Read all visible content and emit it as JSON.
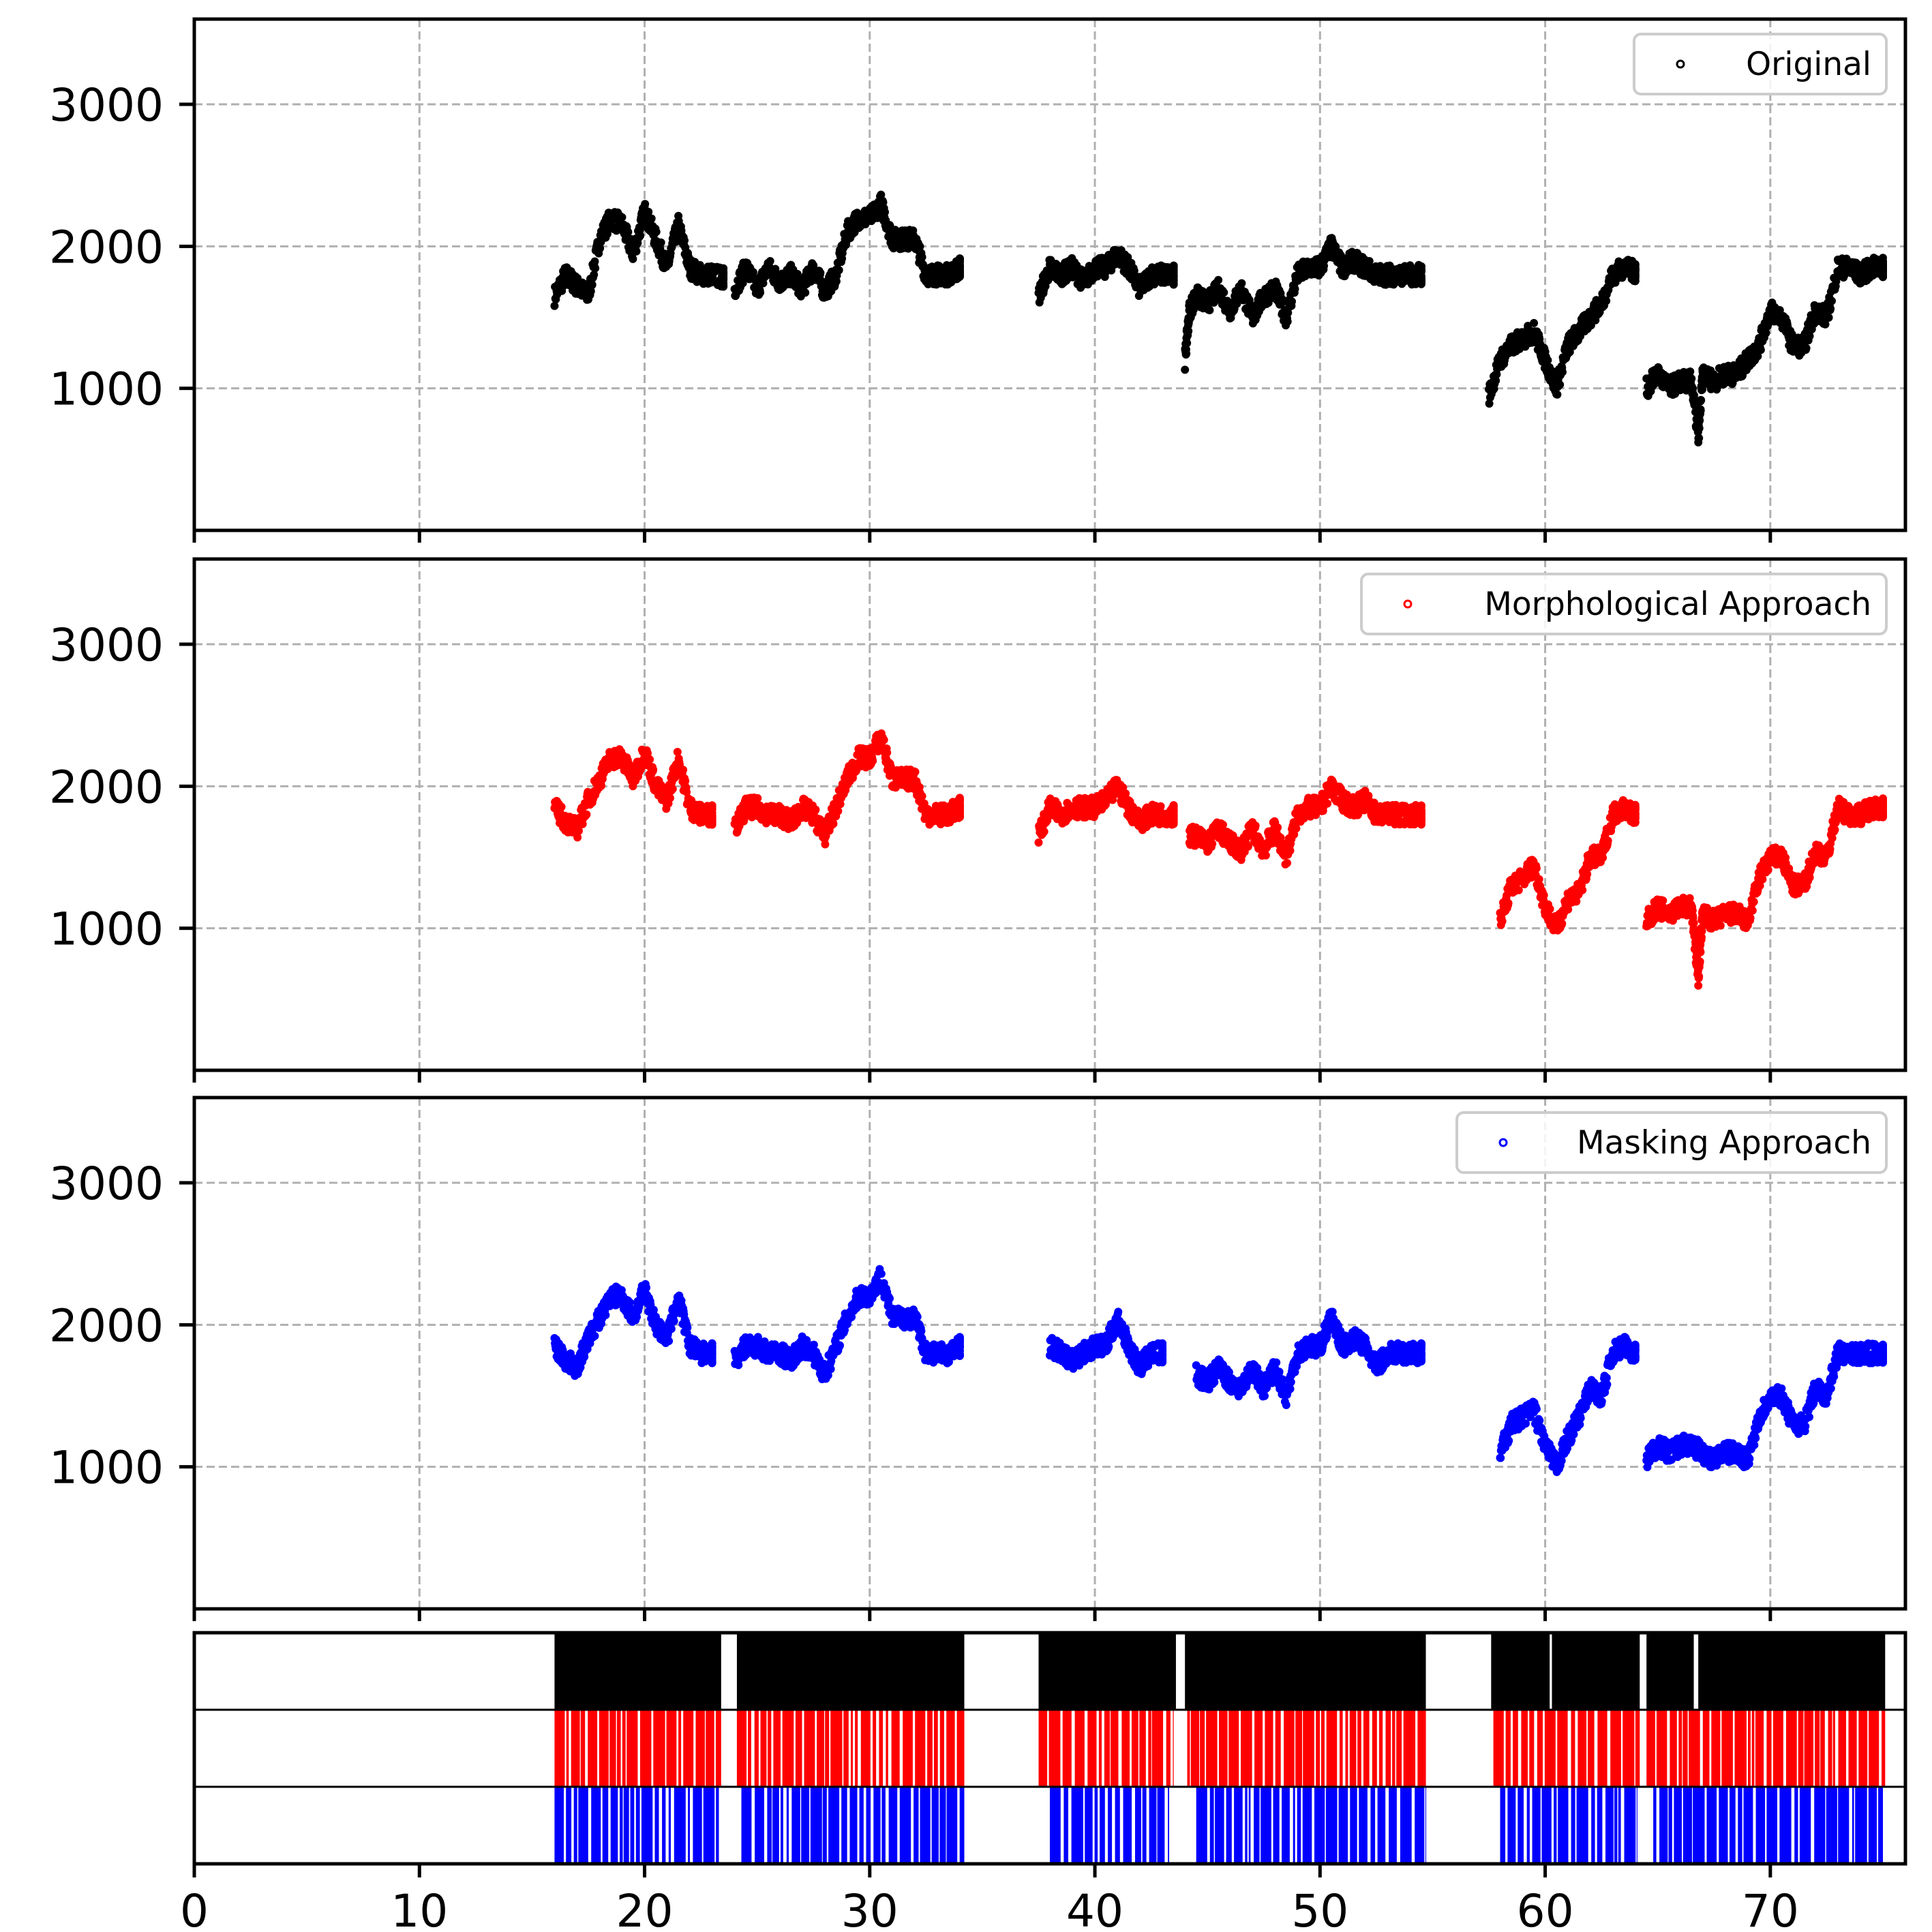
{
  "chart_data": [
    {
      "type": "scatter",
      "legend": "Original",
      "legend_position": "top-right",
      "color": "#000000",
      "xlim": [
        0,
        76
      ],
      "ylim": [
        0,
        3600
      ],
      "yticks": [
        1000,
        2000,
        3000
      ],
      "grid": true,
      "segments": [
        {
          "x": [
            16.0,
            16.5,
            17.0,
            17.5,
            18.0,
            18.5,
            19.0,
            19.5,
            20.0,
            20.5,
            21.0,
            21.5,
            22.0,
            22.5,
            23.0,
            23.5
          ],
          "y": [
            1650,
            1800,
            1720,
            1650,
            2050,
            2200,
            2150,
            1950,
            2250,
            2050,
            1850,
            2150,
            1850,
            1800,
            1800,
            1780
          ]
        },
        {
          "x": [
            24.0,
            24.5,
            25.0,
            25.5,
            26.0,
            26.5,
            27.0,
            27.5,
            28.0,
            28.5,
            29.0,
            29.5,
            30.0,
            30.5,
            31.0,
            31.5,
            32.0,
            32.5,
            33.0,
            33.5,
            34.0
          ],
          "y": [
            1700,
            1850,
            1700,
            1850,
            1750,
            1800,
            1700,
            1850,
            1680,
            1800,
            2100,
            2200,
            2200,
            2300,
            2050,
            2050,
            2050,
            1800,
            1800,
            1800,
            1850
          ]
        },
        {
          "x": [
            37.5,
            38.0,
            38.5,
            39.0,
            39.5,
            40.0,
            40.5,
            41.0,
            41.5,
            42.0,
            42.5,
            43.0,
            43.5
          ],
          "y": [
            1650,
            1850,
            1800,
            1850,
            1750,
            1850,
            1850,
            1950,
            1850,
            1700,
            1800,
            1800,
            1800
          ]
        },
        {
          "x": [
            44.0,
            44.2,
            44.5,
            45.0,
            45.5,
            46.0,
            46.5,
            47.0,
            47.5,
            48.0,
            48.5,
            49.0,
            49.5,
            50.0,
            50.5,
            51.0,
            51.5,
            52.0,
            52.5,
            53.0,
            53.5,
            54.0,
            54.5
          ],
          "y": [
            1200,
            1550,
            1650,
            1600,
            1700,
            1550,
            1700,
            1500,
            1650,
            1700,
            1500,
            1800,
            1850,
            1850,
            2000,
            1850,
            1900,
            1850,
            1800,
            1800,
            1800,
            1800,
            1800
          ]
        },
        {
          "x": [
            57.5,
            58.0,
            58.5,
            59.0,
            59.5,
            60.0,
            60.5,
            61.0,
            61.5,
            62.0,
            62.5,
            63.0,
            63.5,
            64.0
          ],
          "y": [
            950,
            1200,
            1300,
            1350,
            1400,
            1200,
            1000,
            1300,
            1400,
            1500,
            1600,
            1800,
            1850,
            1820
          ]
        },
        {
          "x": [
            64.5,
            65.0,
            65.5,
            66.0,
            66.5,
            66.8,
            67.0,
            67.5,
            68.0,
            68.5,
            69.0,
            69.5,
            70.0,
            70.5,
            71.0,
            71.5,
            72.0,
            72.5,
            73.0,
            73.5,
            74.0,
            74.5,
            75.0
          ],
          "y": [
            1000,
            1100,
            1000,
            1050,
            1050,
            650,
            1100,
            1050,
            1100,
            1100,
            1200,
            1300,
            1550,
            1500,
            1300,
            1300,
            1550,
            1500,
            1850,
            1850,
            1800,
            1850,
            1850
          ]
        }
      ]
    },
    {
      "type": "scatter",
      "legend": "Morphological Approach",
      "legend_position": "top-right",
      "color": "#ff0000",
      "xlim": [
        0,
        76
      ],
      "ylim": [
        0,
        3600
      ],
      "yticks": [
        1000,
        2000,
        3000
      ],
      "grid": true,
      "segments": [
        {
          "x": [
            16.0,
            16.5,
            17.0,
            17.5,
            18.0,
            18.5,
            19.0,
            19.5,
            20.0,
            20.5,
            21.0,
            21.5,
            22.0,
            22.5,
            23.0
          ],
          "y": [
            1850,
            1750,
            1700,
            1900,
            2050,
            2200,
            2200,
            2050,
            2250,
            2000,
            1900,
            2200,
            1850,
            1800,
            1800
          ]
        },
        {
          "x": [
            24.0,
            24.5,
            25.0,
            25.5,
            26.0,
            26.5,
            27.0,
            27.5,
            28.0,
            28.5,
            29.0,
            29.5,
            30.0,
            30.5,
            31.0,
            31.5,
            32.0,
            32.5,
            33.0,
            33.5,
            34.0
          ],
          "y": [
            1700,
            1850,
            1850,
            1800,
            1800,
            1750,
            1850,
            1800,
            1650,
            1850,
            2050,
            2200,
            2200,
            2350,
            2050,
            2050,
            2050,
            1800,
            1800,
            1800,
            1850
          ]
        },
        {
          "x": [
            37.5,
            38.0,
            38.5,
            39.0,
            39.5,
            40.0,
            40.5,
            41.0,
            41.5,
            42.0,
            42.5,
            43.0,
            43.5
          ],
          "y": [
            1650,
            1850,
            1800,
            1850,
            1850,
            1850,
            1900,
            2000,
            1850,
            1750,
            1800,
            1800,
            1800
          ]
        },
        {
          "x": [
            44.2,
            44.5,
            45.0,
            45.5,
            46.0,
            46.5,
            47.0,
            47.5,
            48.0,
            48.5,
            49.0,
            49.5,
            50.0,
            50.5,
            51.0,
            51.5,
            52.0,
            52.5,
            53.0,
            53.5,
            54.0,
            54.5
          ],
          "y": [
            1650,
            1650,
            1600,
            1700,
            1600,
            1550,
            1700,
            1550,
            1700,
            1500,
            1800,
            1850,
            1850,
            2000,
            1900,
            1850,
            1900,
            1800,
            1800,
            1800,
            1800,
            1800
          ]
        },
        {
          "x": [
            58.0,
            58.5,
            59.0,
            59.5,
            60.0,
            60.5,
            61.0,
            61.5,
            62.0,
            62.5,
            63.0,
            63.5,
            64.0
          ],
          "y": [
            1050,
            1300,
            1350,
            1450,
            1150,
            1000,
            1200,
            1250,
            1500,
            1500,
            1800,
            1850,
            1800
          ]
        },
        {
          "x": [
            64.5,
            65.0,
            65.5,
            66.0,
            66.5,
            66.8,
            67.0,
            67.5,
            68.0,
            68.5,
            69.0,
            69.5,
            70.0,
            70.5,
            71.0,
            71.5,
            72.0,
            72.5,
            73.0,
            73.5,
            74.0,
            74.5,
            75.0
          ],
          "y": [
            1050,
            1150,
            1100,
            1150,
            1150,
            650,
            1100,
            1050,
            1100,
            1100,
            1050,
            1350,
            1500,
            1500,
            1300,
            1300,
            1550,
            1500,
            1850,
            1800,
            1800,
            1850,
            1850
          ]
        }
      ]
    },
    {
      "type": "scatter",
      "legend": "Masking Approach",
      "legend_position": "top-right",
      "color": "#0000ff",
      "xlim": [
        0,
        76
      ],
      "ylim": [
        0,
        3600
      ],
      "yticks": [
        1000,
        2000,
        3000
      ],
      "grid": true,
      "segments": [
        {
          "x": [
            16.0,
            16.5,
            17.0,
            17.5,
            18.0,
            18.5,
            19.0,
            19.5,
            20.0,
            20.5,
            21.0,
            21.5,
            22.0,
            22.5,
            23.0
          ],
          "y": [
            1850,
            1750,
            1700,
            1900,
            2050,
            2200,
            2200,
            2050,
            2250,
            2000,
            1900,
            2200,
            1850,
            1800,
            1800
          ]
        },
        {
          "x": [
            24.0,
            24.5,
            25.0,
            25.5,
            26.0,
            26.5,
            27.0,
            27.5,
            28.0,
            28.5,
            29.0,
            29.5,
            30.0,
            30.5,
            31.0,
            31.5,
            32.0,
            32.5,
            33.0,
            33.5,
            34.0
          ],
          "y": [
            1750,
            1850,
            1850,
            1800,
            1800,
            1750,
            1850,
            1800,
            1650,
            1850,
            2050,
            2200,
            2200,
            2350,
            2050,
            2050,
            2050,
            1800,
            1800,
            1800,
            1850
          ]
        },
        {
          "x": [
            38.0,
            38.5,
            39.0,
            39.5,
            40.0,
            40.5,
            41.0,
            41.5,
            42.0,
            42.5,
            43.0
          ],
          "y": [
            1850,
            1800,
            1750,
            1800,
            1850,
            1850,
            2050,
            1850,
            1700,
            1800,
            1800
          ]
        },
        {
          "x": [
            44.5,
            45.0,
            45.5,
            46.0,
            46.5,
            47.0,
            47.5,
            48.0,
            48.5,
            49.0,
            49.5,
            50.0,
            50.5,
            51.0,
            51.5,
            52.0,
            52.5,
            53.0,
            53.5,
            54.0,
            54.5
          ],
          "y": [
            1650,
            1600,
            1700,
            1600,
            1550,
            1700,
            1550,
            1700,
            1500,
            1800,
            1850,
            1850,
            2050,
            1850,
            1900,
            1850,
            1700,
            1800,
            1800,
            1800,
            1800
          ]
        },
        {
          "x": [
            58.0,
            58.5,
            59.0,
            59.5,
            60.0,
            60.5,
            61.0,
            61.5,
            62.0,
            62.5,
            63.0,
            63.5,
            64.0
          ],
          "y": [
            1100,
            1300,
            1350,
            1400,
            1150,
            1000,
            1200,
            1350,
            1550,
            1500,
            1800,
            1850,
            1800
          ]
        },
        {
          "x": [
            64.5,
            65.0,
            65.5,
            66.0,
            66.5,
            67.0,
            67.5,
            68.0,
            68.5,
            69.0,
            69.5,
            70.0,
            70.5,
            71.0,
            71.5,
            72.0,
            72.5,
            73.0,
            73.5,
            74.0,
            74.5,
            75.0
          ],
          "y": [
            1050,
            1150,
            1100,
            1150,
            1150,
            1100,
            1050,
            1100,
            1100,
            1050,
            1350,
            1500,
            1500,
            1300,
            1300,
            1550,
            1500,
            1800,
            1800,
            1800,
            1800,
            1800
          ]
        }
      ]
    },
    {
      "type": "heatmap",
      "description_rows": [
        "Original",
        "Morphological Approach",
        "Masking Approach"
      ],
      "xlim": [
        0,
        76
      ],
      "xticks": [
        0,
        10,
        20,
        30,
        40,
        50,
        60,
        70
      ],
      "rows": [
        {
          "color": "#000000",
          "intervals": [
            [
              16.0,
              23.4
            ],
            [
              24.1,
              34.2
            ],
            [
              37.5,
              43.6
            ],
            [
              44.0,
              54.7
            ],
            [
              57.6,
              60.2
            ],
            [
              60.3,
              64.2
            ],
            [
              64.5,
              66.6
            ],
            [
              66.8,
              75.1
            ]
          ]
        },
        {
          "color": "#ff0000",
          "intervals": [
            [
              16.0,
              23.4
            ],
            [
              24.1,
              34.2
            ],
            [
              37.5,
              43.5
            ],
            [
              44.1,
              54.7
            ],
            [
              57.7,
              64.2
            ],
            [
              64.5,
              75.1
            ]
          ]
        },
        {
          "color": "#0000ff",
          "intervals": [
            [
              16.0,
              23.3
            ],
            [
              24.3,
              34.2
            ],
            [
              38.0,
              43.3
            ],
            [
              44.5,
              54.7
            ],
            [
              58.0,
              64.1
            ],
            [
              64.8,
              75.0
            ]
          ]
        }
      ]
    }
  ]
}
